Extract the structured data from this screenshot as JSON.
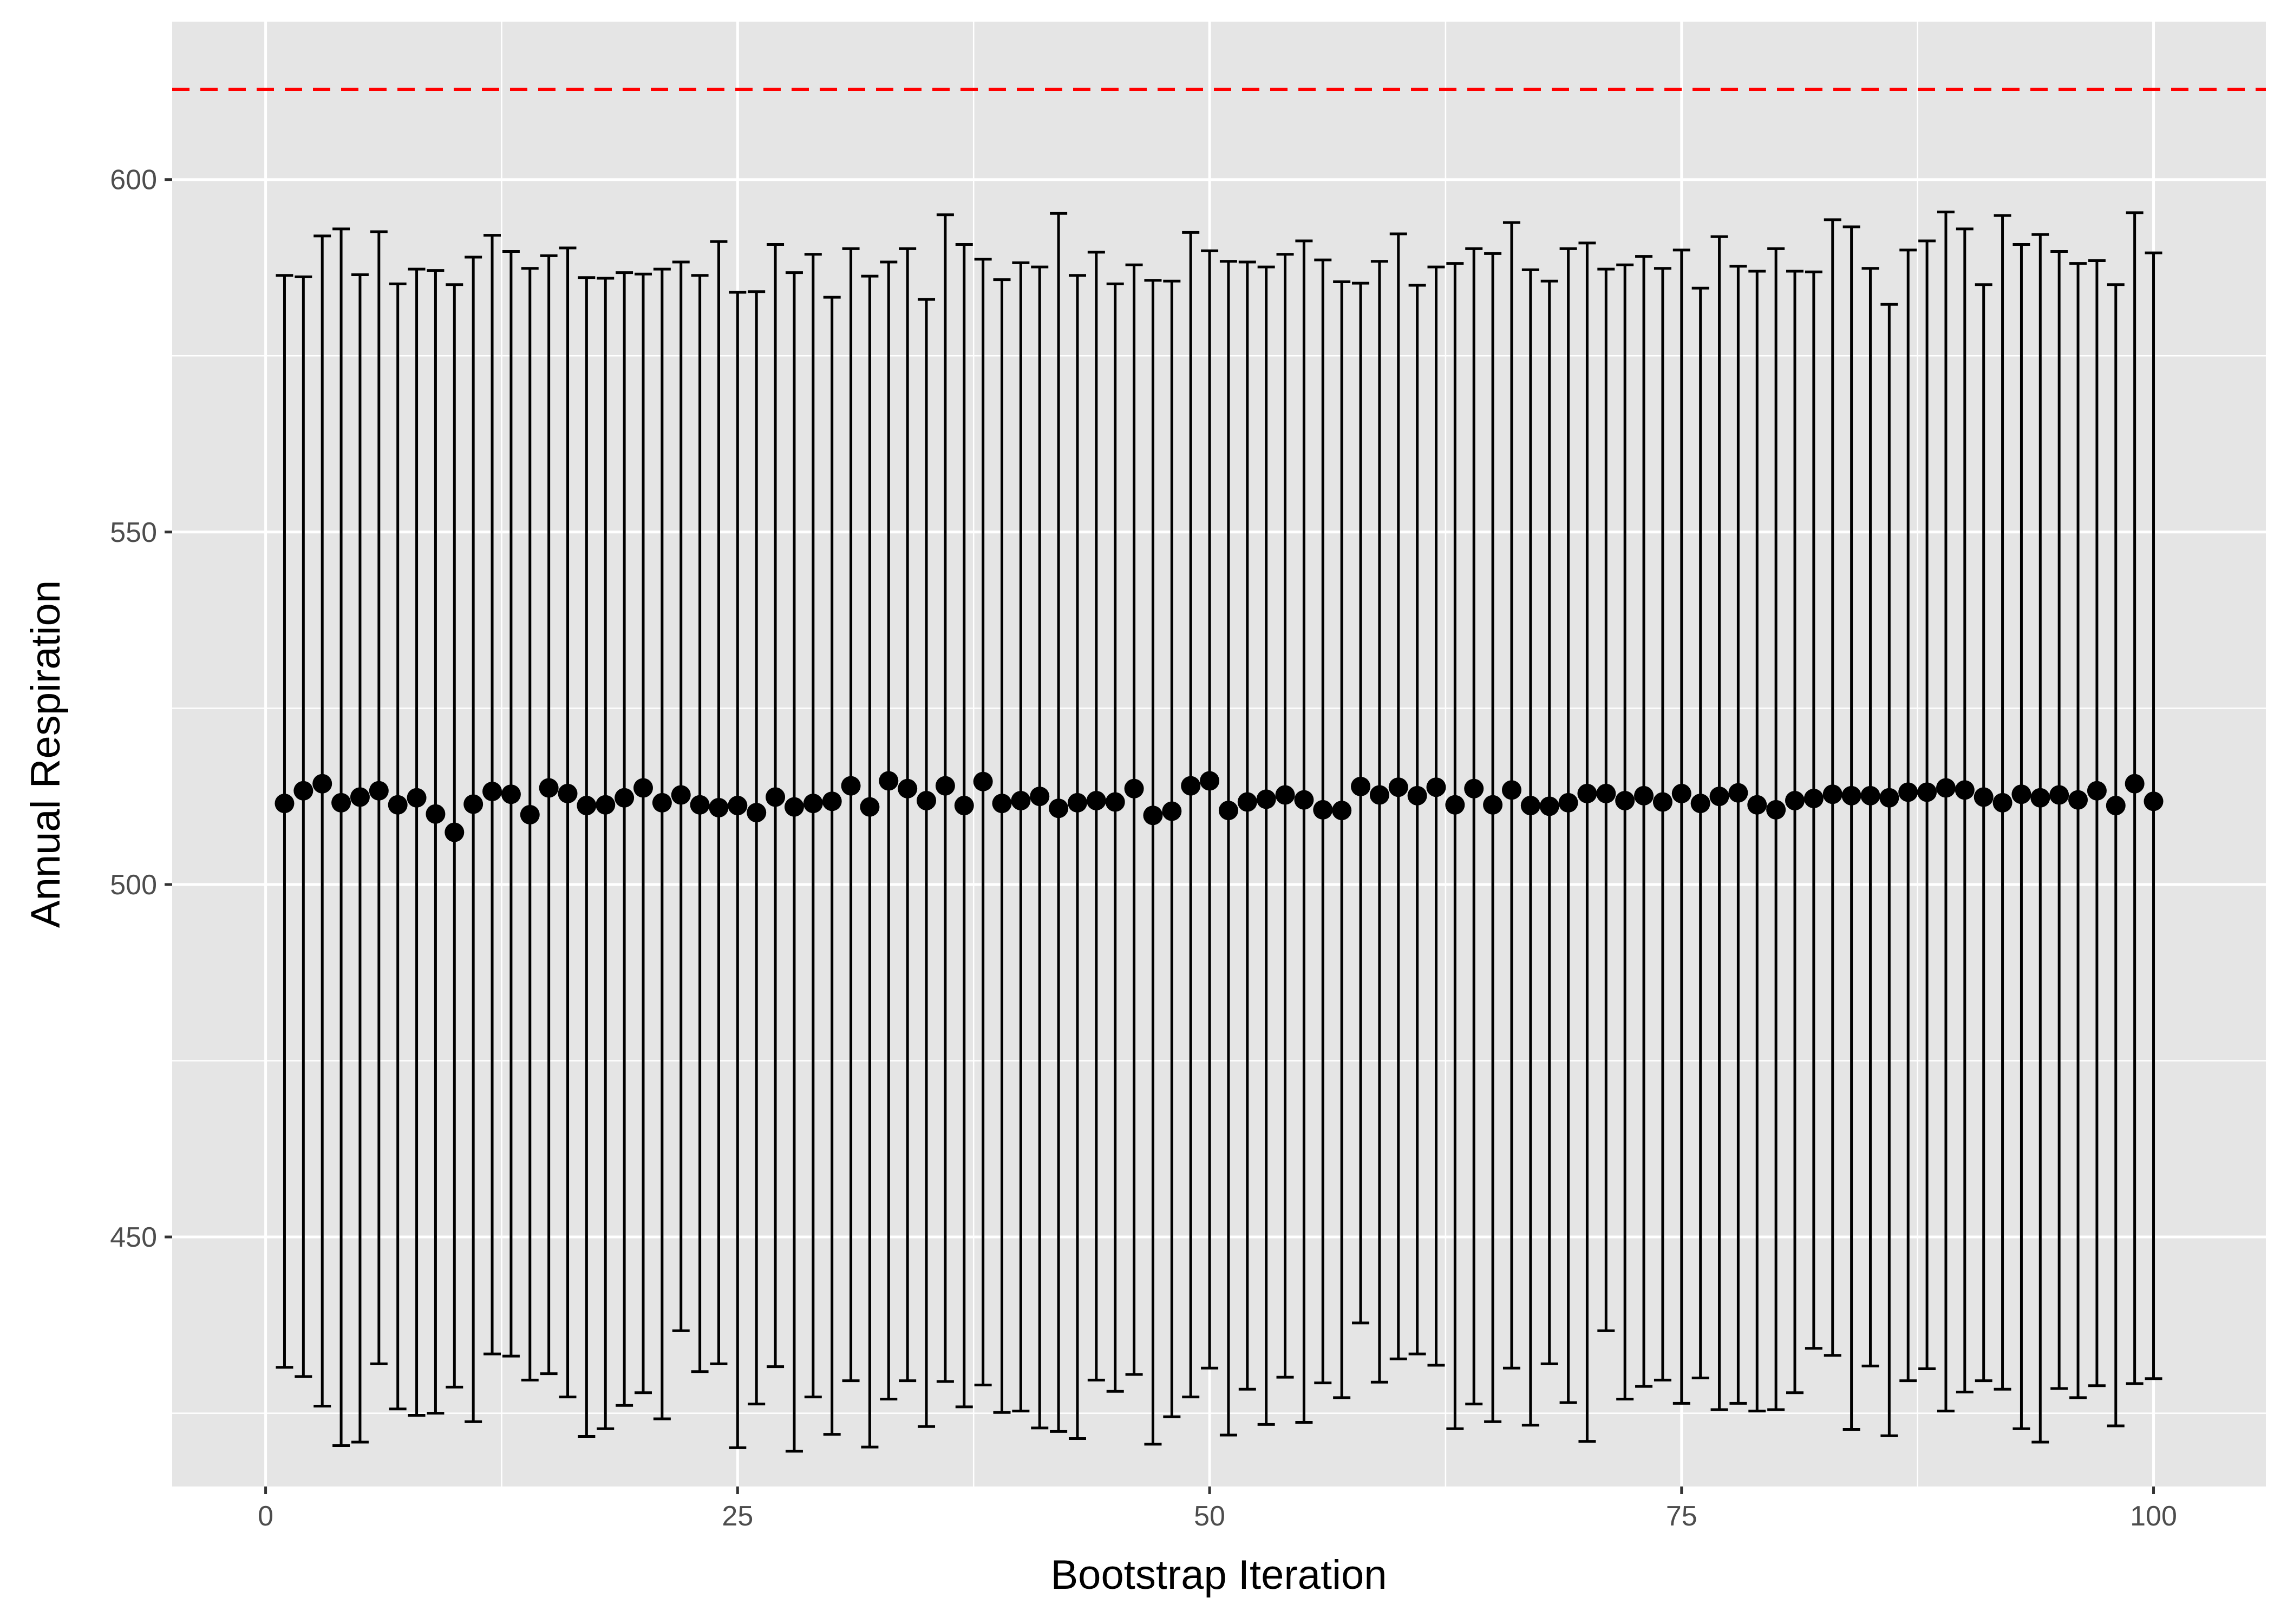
{
  "chart_data": {
    "type": "errorbar",
    "xlabel": "Bootstrap Iteration",
    "ylabel": "Annual Respiration",
    "xlim": [
      -4.95,
      105.95
    ],
    "ylim": [
      414.6,
      622.4
    ],
    "x_ticks": [
      0,
      25,
      50,
      75,
      100
    ],
    "y_ticks": [
      450,
      500,
      550,
      600
    ],
    "reference_line": {
      "y": 612.8,
      "color": "#ff0000",
      "style": "dashed"
    },
    "panel_background": "#e5e5e5",
    "grid": true,
    "x": [
      1,
      2,
      3,
      4,
      5,
      6,
      7,
      8,
      9,
      10,
      11,
      12,
      13,
      14,
      15,
      16,
      17,
      18,
      19,
      20,
      21,
      22,
      23,
      24,
      25,
      26,
      27,
      28,
      29,
      30,
      31,
      32,
      33,
      34,
      35,
      36,
      37,
      38,
      39,
      40,
      41,
      42,
      43,
      44,
      45,
      46,
      47,
      48,
      49,
      50,
      51,
      52,
      53,
      54,
      55,
      56,
      57,
      58,
      59,
      60,
      61,
      62,
      63,
      64,
      65,
      66,
      67,
      68,
      69,
      70,
      71,
      72,
      73,
      74,
      75,
      76,
      77,
      78,
      79,
      80,
      81,
      82,
      83,
      84,
      85,
      86,
      87,
      88,
      89,
      90,
      91,
      92,
      93,
      94,
      95,
      96,
      97,
      98,
      99,
      100
    ],
    "estimate": [
      511.5,
      513.3,
      514.3,
      511.6,
      512.4,
      513.3,
      511.3,
      512.3,
      510.0,
      507.4,
      511.4,
      513.2,
      512.8,
      509.9,
      513.7,
      512.9,
      511.2,
      511.3,
      512.3,
      513.7,
      511.6,
      512.7,
      511.3,
      510.9,
      511.2,
      510.2,
      512.4,
      511.0,
      511.5,
      511.8,
      514.0,
      511.0,
      514.7,
      513.6,
      511.9,
      514.0,
      511.2,
      514.6,
      511.5,
      511.9,
      512.5,
      510.8,
      511.6,
      511.9,
      511.7,
      513.6,
      509.8,
      510.4,
      514.0,
      514.7,
      510.5,
      511.7,
      512.1,
      512.7,
      512.0,
      510.6,
      510.5,
      513.9,
      512.7,
      513.8,
      512.6,
      513.8,
      511.3,
      513.6,
      511.3,
      513.4,
      511.2,
      511.1,
      511.6,
      512.9,
      512.9,
      511.9,
      512.6,
      511.7,
      512.9,
      511.5,
      512.5,
      513.0,
      511.3,
      510.6,
      511.9,
      512.2,
      512.8,
      512.6,
      512.6,
      512.3,
      513.1,
      513.1,
      513.7,
      513.4,
      512.4,
      511.6,
      512.8,
      512.3,
      512.7,
      512.0,
      513.3,
      511.2,
      514.3,
      511.8
    ],
    "lower": [
      431.5,
      430.2,
      426.0,
      420.4,
      420.9,
      432.0,
      425.6,
      424.7,
      425.0,
      428.7,
      423.8,
      433.4,
      433.1,
      429.7,
      430.6,
      427.3,
      421.7,
      422.8,
      426.1,
      427.9,
      424.2,
      436.7,
      430.9,
      432.0,
      420.1,
      426.3,
      431.6,
      419.6,
      427.3,
      422.0,
      429.6,
      420.2,
      427.0,
      429.6,
      423.1,
      429.5,
      425.9,
      429.0,
      425.1,
      425.3,
      422.9,
      422.4,
      421.4,
      429.7,
      428.1,
      430.5,
      420.6,
      424.5,
      427.3,
      431.4,
      421.9,
      428.4,
      423.4,
      430.1,
      423.7,
      429.3,
      427.2,
      437.8,
      429.4,
      432.7,
      433.4,
      431.8,
      422.8,
      426.3,
      423.8,
      431.4,
      423.3,
      432.0,
      426.5,
      421.0,
      436.7,
      427.0,
      428.8,
      429.7,
      426.4,
      430.0,
      425.5,
      426.4,
      425.3,
      425.5,
      427.9,
      434.2,
      433.2,
      422.7,
      431.7,
      421.8,
      429.6,
      431.3,
      425.3,
      428.0,
      429.6,
      428.4,
      422.8,
      420.9,
      428.5,
      427.2,
      428.9,
      423.2,
      429.2,
      429.9
    ],
    "upper": [
      586.4,
      586.2,
      592.0,
      593.0,
      586.5,
      592.6,
      585.2,
      587.3,
      587.1,
      585.1,
      589.0,
      592.1,
      589.8,
      587.4,
      589.2,
      590.3,
      586.1,
      586.0,
      586.8,
      586.6,
      587.3,
      588.3,
      586.4,
      591.2,
      584.0,
      584.1,
      590.8,
      586.8,
      589.4,
      583.3,
      590.2,
      586.3,
      588.3,
      590.2,
      583.0,
      595.0,
      590.8,
      588.7,
      585.8,
      588.2,
      587.6,
      595.2,
      586.4,
      589.7,
      585.2,
      587.9,
      585.7,
      585.6,
      592.5,
      589.9,
      588.4,
      588.3,
      587.6,
      589.4,
      591.3,
      588.6,
      585.5,
      585.3,
      588.4,
      592.3,
      585.0,
      587.6,
      588.1,
      590.2,
      589.5,
      593.9,
      587.2,
      585.6,
      590.2,
      591.0,
      587.3,
      587.9,
      589.1,
      587.4,
      590.0,
      584.6,
      591.9,
      587.7,
      587.0,
      590.2,
      587.0,
      586.9,
      594.3,
      593.3,
      587.4,
      582.3,
      590.0,
      591.3,
      595.4,
      593.0,
      585.1,
      594.9,
      590.8,
      592.2,
      589.8,
      588.1,
      588.5,
      585.1,
      595.3,
      589.6
    ]
  }
}
